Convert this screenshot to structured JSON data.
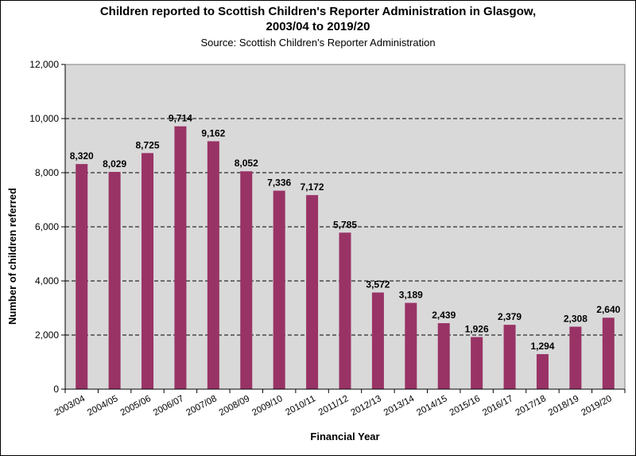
{
  "chart_data": {
    "type": "bar",
    "title_line1": "Children reported to Scottish Children's Reporter Administration in Glasgow,",
    "title_line2": "2003/04 to 2019/20",
    "subtitle": "Source: Scottish Children's Reporter Administration",
    "xlabel": "Financial Year",
    "ylabel": "Number of children referred",
    "ylim": [
      0,
      12000
    ],
    "yticks": [
      0,
      2000,
      4000,
      6000,
      8000,
      10000,
      12000
    ],
    "ytick_labels": [
      "0",
      "2,000",
      "4,000",
      "6,000",
      "8,000",
      "10,000",
      "12,000"
    ],
    "categories": [
      "2003/04",
      "2004/05",
      "2005/06",
      "2006/07",
      "2007/08",
      "2008/09",
      "2009/10",
      "2010/11",
      "2011/12",
      "2012/13",
      "2013/14",
      "2014/15",
      "2015/16",
      "2016/17",
      "2017/18",
      "2018/19",
      "2019/20"
    ],
    "values": [
      8320,
      8029,
      8725,
      9714,
      9162,
      8052,
      7336,
      7172,
      5785,
      3572,
      3189,
      2439,
      1926,
      2379,
      1294,
      2308,
      2640
    ],
    "value_labels": [
      "8,320",
      "8,029",
      "8,725",
      "9,714",
      "9,162",
      "8,052",
      "7,336",
      "7,172",
      "5,785",
      "3,572",
      "3,189",
      "2,439",
      "1,926",
      "2,379",
      "1,294",
      "2,308",
      "2,640"
    ],
    "grid": true,
    "legend": "none",
    "colors": {
      "bar": "#993366",
      "plot_bg": "#d9d9d9",
      "grid": "#000000"
    }
  }
}
